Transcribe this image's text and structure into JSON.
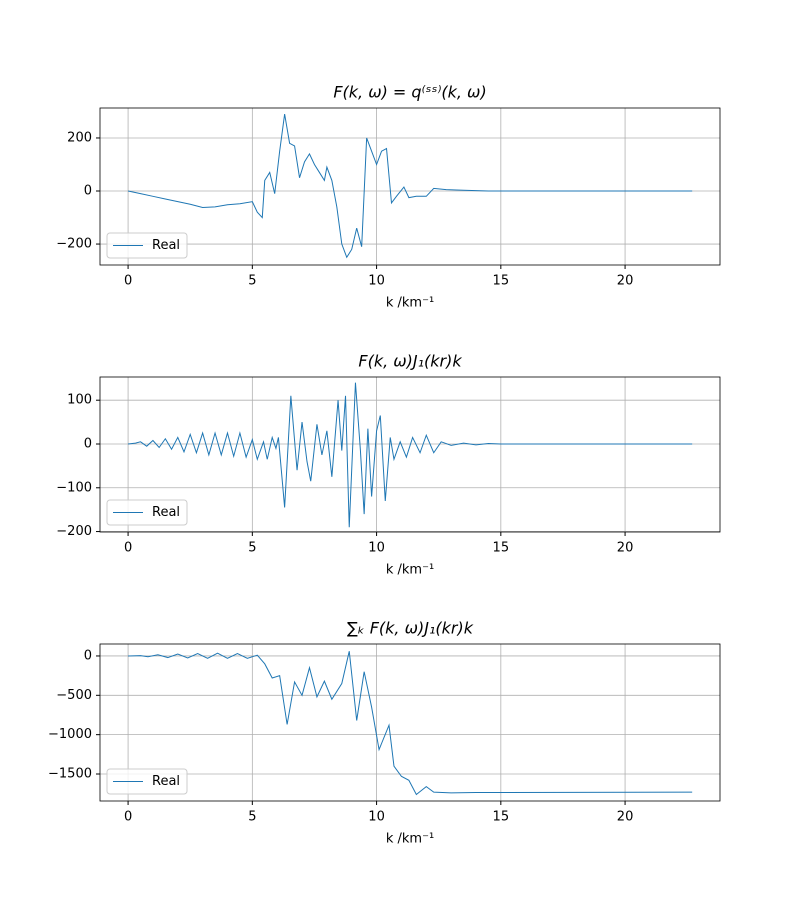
{
  "chart_data": [
    {
      "type": "line",
      "title": "F(k, ω) = q⁽ˢˢ⁾(k, ω)",
      "xlabel": "k /km⁻¹",
      "x": [
        0,
        0.5,
        1,
        1.5,
        2,
        2.5,
        3,
        3.5,
        4,
        4.5,
        5,
        5.2,
        5.4,
        5.5,
        5.7,
        5.9,
        6.1,
        6.3,
        6.5,
        6.7,
        6.9,
        7.1,
        7.3,
        7.5,
        7.7,
        7.9,
        8.0,
        8.2,
        8.4,
        8.6,
        8.8,
        9.0,
        9.2,
        9.4,
        9.6,
        9.8,
        10.0,
        10.2,
        10.4,
        10.6,
        10.8,
        11.1,
        11.3,
        11.6,
        12.0,
        12.3,
        12.8,
        13.5,
        14.5,
        22.7
      ],
      "series": [
        {
          "name": "Real",
          "color": "#1f77b4",
          "values": [
            0,
            -10,
            -20,
            -30,
            -40,
            -50,
            -62,
            -60,
            -52,
            -48,
            -40,
            -80,
            -100,
            40,
            70,
            -10,
            150,
            290,
            180,
            170,
            50,
            110,
            140,
            100,
            70,
            40,
            90,
            40,
            -60,
            -200,
            -250,
            -220,
            -140,
            -210,
            200,
            150,
            100,
            150,
            160,
            -45,
            -20,
            15,
            -25,
            -20,
            -20,
            10,
            5,
            3,
            0,
            0
          ]
        }
      ],
      "xlim": [
        -1.13,
        23.82
      ],
      "ylim": [
        -279,
        313
      ],
      "xticks": [
        0,
        5,
        10,
        15,
        20
      ],
      "yticks": [
        {
          "value": -200,
          "label": "−200"
        },
        0,
        200
      ],
      "grid": true,
      "legend": "lower left"
    },
    {
      "type": "line",
      "title": "F(k, ω)J₁(kr)k",
      "xlabel": "k /km⁻¹",
      "x": [
        0,
        0.3,
        0.5,
        0.75,
        1.0,
        1.25,
        1.5,
        1.75,
        2.0,
        2.25,
        2.5,
        2.75,
        3.0,
        3.25,
        3.5,
        3.75,
        4.0,
        4.25,
        4.5,
        4.75,
        5.0,
        5.2,
        5.45,
        5.6,
        5.8,
        5.95,
        6.05,
        6.3,
        6.55,
        6.8,
        7.0,
        7.2,
        7.35,
        7.6,
        7.8,
        8.0,
        8.2,
        8.45,
        8.6,
        8.75,
        8.9,
        9.15,
        9.35,
        9.5,
        9.65,
        9.8,
        10.0,
        10.15,
        10.35,
        10.55,
        10.7,
        10.95,
        11.2,
        11.45,
        11.75,
        12.0,
        12.3,
        12.6,
        13.0,
        13.5,
        14.0,
        14.5,
        15,
        22.7
      ],
      "series": [
        {
          "name": "Real",
          "color": "#1f77b4",
          "values": [
            0,
            2,
            5,
            -5,
            8,
            -8,
            12,
            -12,
            15,
            -18,
            22,
            -20,
            25,
            -25,
            25,
            -25,
            25,
            -28,
            25,
            -30,
            10,
            -35,
            5,
            -35,
            15,
            -10,
            15,
            -145,
            110,
            -60,
            50,
            -40,
            -85,
            45,
            -25,
            30,
            -75,
            100,
            -15,
            110,
            -190,
            140,
            -15,
            -160,
            35,
            -120,
            30,
            65,
            -130,
            15,
            -35,
            5,
            -30,
            15,
            -20,
            20,
            -20,
            5,
            -3,
            2,
            -2,
            1,
            0,
            0
          ]
        }
      ],
      "xlim": [
        -1.13,
        23.82
      ],
      "ylim": [
        -201,
        153
      ],
      "xticks": [
        0,
        5,
        10,
        15,
        20
      ],
      "yticks": [
        {
          "value": -200,
          "label": "−200"
        },
        {
          "value": -100,
          "label": "−100"
        },
        0,
        100
      ],
      "grid": true,
      "legend": "lower left"
    },
    {
      "type": "line",
      "title": "∑ₖ F(k, ω)J₁(kr)k",
      "xlabel": "k /km⁻¹",
      "x": [
        0,
        0.5,
        0.8,
        1.2,
        1.6,
        2.0,
        2.4,
        2.8,
        3.2,
        3.6,
        4.0,
        4.4,
        4.8,
        5.2,
        5.5,
        5.8,
        6.1,
        6.4,
        6.7,
        7.0,
        7.3,
        7.6,
        7.9,
        8.2,
        8.6,
        8.9,
        9.2,
        9.5,
        9.8,
        10.1,
        10.5,
        10.7,
        11.0,
        11.3,
        11.6,
        12.0,
        12.3,
        13,
        14,
        22.7
      ],
      "series": [
        {
          "name": "Real",
          "color": "#1f77b4",
          "values": [
            0,
            5,
            -10,
            15,
            -20,
            25,
            -25,
            30,
            -30,
            35,
            -30,
            30,
            -30,
            10,
            -100,
            -280,
            -250,
            -870,
            -330,
            -500,
            -150,
            -520,
            -320,
            -550,
            -350,
            60,
            -820,
            -200,
            -650,
            -1190,
            -880,
            -1400,
            -1530,
            -1580,
            -1760,
            -1660,
            -1730,
            -1740,
            -1735,
            -1730
          ]
        }
      ],
      "xlim": [
        -1.13,
        23.82
      ],
      "ylim": [
        -1843,
        152
      ],
      "xticks": [
        0,
        5,
        10,
        15,
        20
      ],
      "yticks": [
        {
          "value": -1500,
          "label": "−1500"
        },
        {
          "value": -1000,
          "label": "−1000"
        },
        {
          "value": -500,
          "label": "−500"
        },
        0
      ],
      "grid": true,
      "legend": "lower left"
    }
  ]
}
